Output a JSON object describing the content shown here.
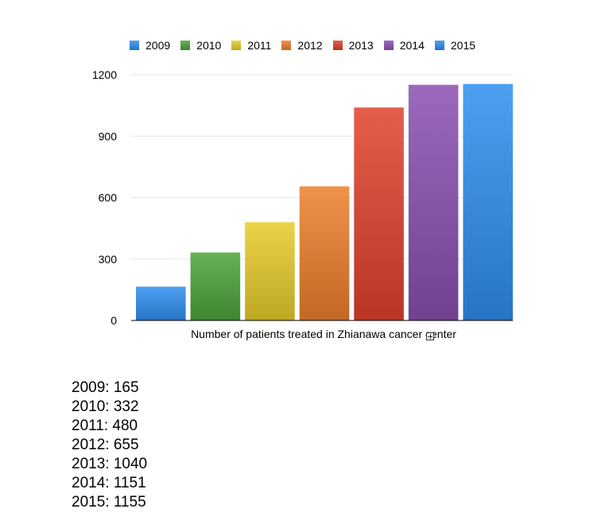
{
  "chart_data": {
    "type": "bar",
    "categories": [
      "Number of patients treated in Zhianawa cancer center"
    ],
    "series": [
      {
        "name": "2009",
        "values": [
          165
        ],
        "color": "#2f8ef0"
      },
      {
        "name": "2010",
        "values": [
          332
        ],
        "color": "#4ca43a"
      },
      {
        "name": "2011",
        "values": [
          480
        ],
        "color": "#e8cc2a"
      },
      {
        "name": "2012",
        "values": [
          655
        ],
        "color": "#ec7f2c"
      },
      {
        "name": "2013",
        "values": [
          1040
        ],
        "color": "#e0412e"
      },
      {
        "name": "2014",
        "values": [
          1151
        ],
        "color": "#8a4fb0"
      },
      {
        "name": "2015",
        "values": [
          1155
        ],
        "color": "#2f8ef0"
      }
    ],
    "ylim": [
      0,
      1200
    ],
    "yticks": [
      "0",
      "300",
      "600",
      "900",
      "1200"
    ],
    "xlabel": "",
    "ylabel": "",
    "grid": true,
    "legend": "top"
  },
  "data_list": [
    "2009: 165",
    "2010: 332",
    "2011: 480",
    "2012: 655",
    "2013: 1040",
    "2014: 1151",
    "2015: 1155"
  ]
}
